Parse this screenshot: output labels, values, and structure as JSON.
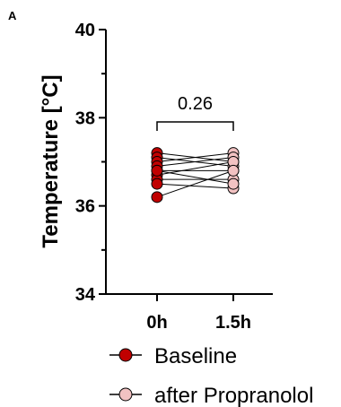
{
  "panel_label": "A",
  "colors": {
    "baseline": "#c00000",
    "after": "#f2c2c2",
    "marker_stroke": "#000000",
    "line": "#000000"
  },
  "chart_data": {
    "type": "scatter",
    "ylabel": "Temperature [°C]",
    "ylim": [
      34,
      40
    ],
    "yticks": [
      34,
      36,
      38,
      40
    ],
    "categories": [
      "0h",
      "1.5h"
    ],
    "paired": true,
    "annotation": {
      "text": "0.26",
      "bracket": [
        "0h",
        "1.5h"
      ],
      "y": 38.0
    },
    "series": [
      {
        "name": "Baseline",
        "color": "#c00000",
        "values": [
          37.2,
          37.1,
          37.0,
          36.9,
          36.8,
          36.7,
          36.6,
          36.5,
          36.8,
          36.2
        ]
      },
      {
        "name": "after Propranolol",
        "color": "#f2c2c2",
        "values": [
          37.0,
          36.9,
          37.2,
          37.1,
          36.8,
          37.0,
          36.6,
          36.4,
          36.5,
          36.8
        ]
      }
    ],
    "legend_position": "bottom"
  }
}
